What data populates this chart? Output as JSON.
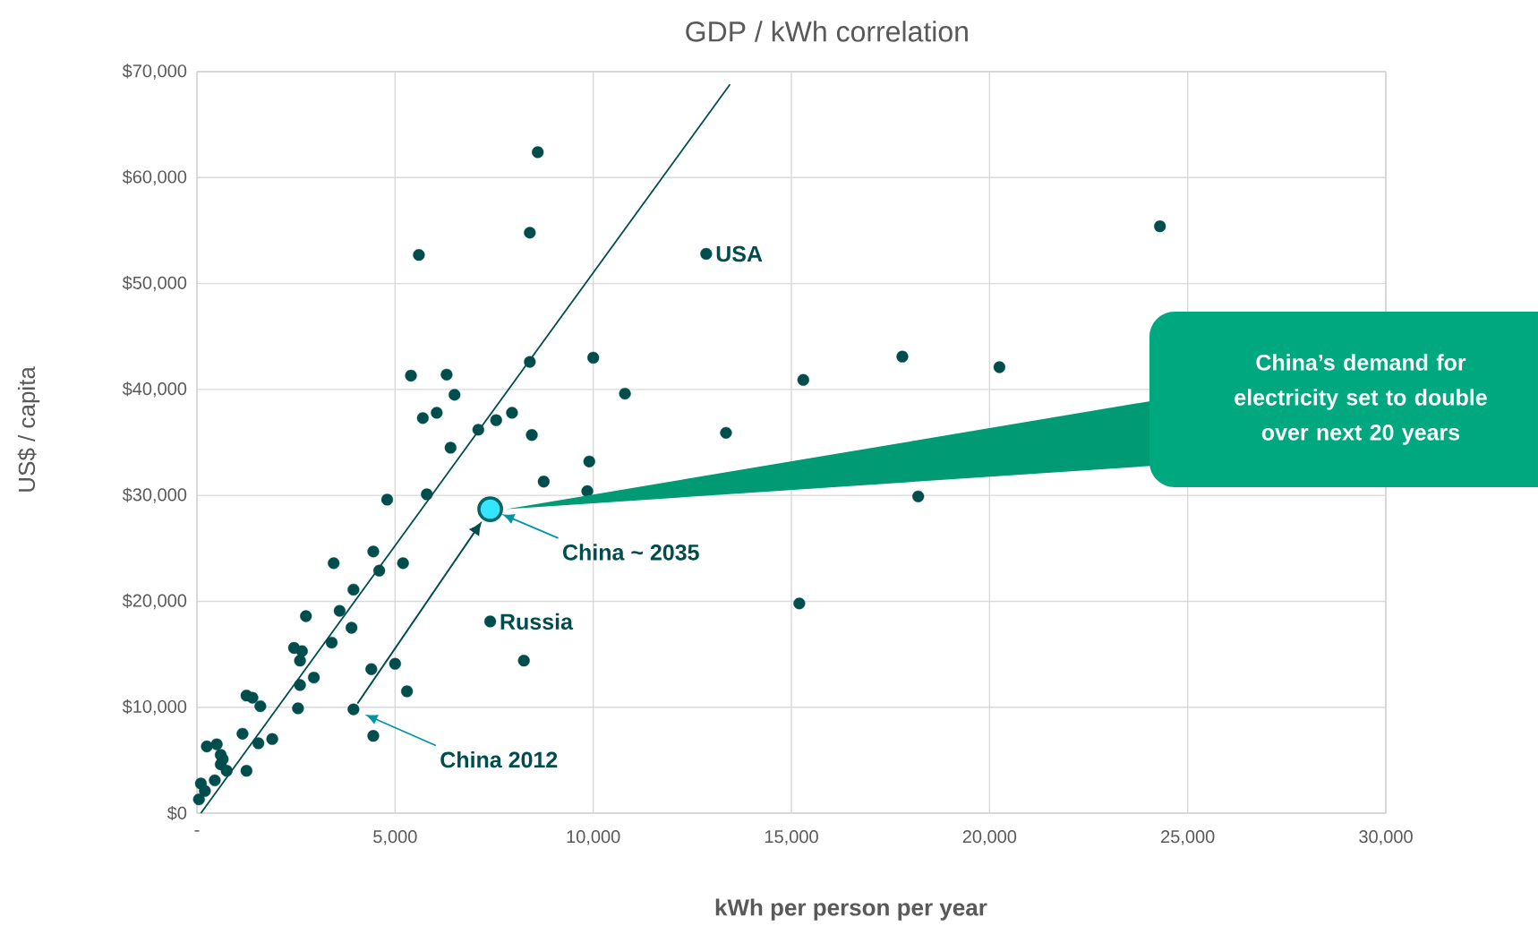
{
  "chart_data": {
    "type": "scatter",
    "title": "GDP / kWh correlation",
    "xlabel": "kWh per person per year",
    "ylabel": "US$ / capita",
    "xlim": [
      0,
      30000
    ],
    "ylim": [
      0,
      70000
    ],
    "xticks": [
      {
        "value": 0,
        "label": "-"
      },
      {
        "value": 5000,
        "label": "5,000"
      },
      {
        "value": 10000,
        "label": "10,000"
      },
      {
        "value": 15000,
        "label": "15,000"
      },
      {
        "value": 20000,
        "label": "20,000"
      },
      {
        "value": 25000,
        "label": "25,000"
      },
      {
        "value": 30000,
        "label": "30,000"
      }
    ],
    "yticks": [
      {
        "value": 0,
        "label": "$0"
      },
      {
        "value": 10000,
        "label": "$10,000"
      },
      {
        "value": 20000,
        "label": "$20,000"
      },
      {
        "value": 30000,
        "label": "$30,000"
      },
      {
        "value": 40000,
        "label": "$40,000"
      },
      {
        "value": 50000,
        "label": "$50,000"
      },
      {
        "value": 60000,
        "label": "$60,000"
      },
      {
        "value": 70000,
        "label": "$70,000"
      }
    ],
    "grid": true,
    "series": [
      {
        "color": "#004d4d",
        "marker": "circle",
        "x": [
          8600,
          8400,
          5600,
          12850,
          24300,
          8400,
          10000,
          5400,
          6300,
          6500,
          10800,
          15300,
          17800,
          20250,
          5700,
          6050,
          7950,
          7550,
          7100,
          8450,
          6400,
          9900,
          8750,
          9850,
          4800,
          5800,
          4450,
          3450,
          4600,
          5200,
          3950,
          3600,
          2750,
          3900,
          7400,
          3400,
          2450,
          2650,
          2600,
          8250,
          4400,
          5000,
          2950,
          2600,
          5300,
          1250,
          1400,
          1600,
          2550,
          3950,
          1150,
          1550,
          1900,
          4450,
          250,
          500,
          600,
          650,
          600,
          750,
          1250,
          450,
          100,
          200,
          50,
          13350,
          18200,
          15200
        ],
        "values": [
          62400,
          54800,
          52700,
          52800,
          55400,
          42600,
          43000,
          41300,
          41400,
          39500,
          39600,
          40900,
          43100,
          42100,
          37300,
          37800,
          37800,
          37100,
          36200,
          35700,
          34500,
          33200,
          31300,
          30400,
          29600,
          30100,
          24700,
          23600,
          22900,
          23600,
          21100,
          19100,
          18600,
          17500,
          18100,
          16100,
          15600,
          15300,
          14400,
          14400,
          13600,
          14100,
          12800,
          12100,
          11500,
          11100,
          10900,
          10100,
          9900,
          9800,
          7500,
          6600,
          7000,
          7300,
          6300,
          6500,
          5500,
          5100,
          4600,
          4000,
          4000,
          3100,
          2800,
          2100,
          1300,
          35900,
          29900,
          19800
        ]
      },
      {
        "color": "#33e5ff",
        "marker": "circle",
        "x": [
          7400
        ],
        "values": [
          28700
        ]
      },
      {
        "type": "line",
        "color": "#004d4d",
        "marker": "none",
        "x": [
          100,
          13450
        ],
        "values": [
          0,
          68800
        ]
      }
    ],
    "annotations": [
      {
        "text": "USA",
        "x": 12850,
        "y": 52800
      },
      {
        "text": "Russia",
        "x": 7400,
        "y": 18100
      },
      "China ~ 2035",
      "China 2012",
      "China’s demand for electricity set to double over next 20 years"
    ]
  }
}
